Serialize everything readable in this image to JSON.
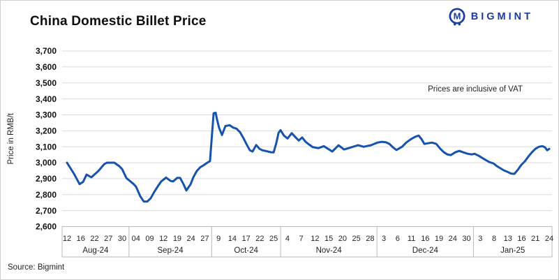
{
  "header": {
    "title": "China Domestic Billet Price",
    "brand": "BIGMINT"
  },
  "footer": {
    "source": "Source: Bigmint"
  },
  "colors": {
    "line": "#1553AD",
    "brand": "#1A3C9C",
    "grid": "#DBDBDB",
    "axis": "#B9B9B9",
    "text": "#1A1A1A"
  },
  "chart_data": {
    "type": "line",
    "title": "China Domestic Billet Price",
    "ylabel": "Price in RMB/t",
    "annotation": "Prices are inclusive of VAT",
    "ylim": [
      2600,
      3700
    ],
    "y_tick_step": 100,
    "grid": "horizontal",
    "legend_position": "none",
    "x_groups": [
      {
        "label": "Aug-24",
        "ticks": [
          "12",
          "16",
          "22",
          "27",
          "30"
        ]
      },
      {
        "label": "Sep-24",
        "ticks": [
          "04",
          "09",
          "12",
          "19",
          "24",
          "27"
        ]
      },
      {
        "label": "Oct-24",
        "ticks": [
          "9",
          "14",
          "17",
          "22",
          "25"
        ]
      },
      {
        "label": "Nov-24",
        "ticks": [
          "4",
          "7",
          "12",
          "15",
          "20",
          "25",
          "28"
        ]
      },
      {
        "label": "Dec-24",
        "ticks": [
          "3",
          "6",
          "11",
          "16",
          "19",
          "24",
          "30"
        ]
      },
      {
        "label": "Jan-25",
        "ticks": [
          "3",
          "8",
          "13",
          "16",
          "21",
          "24"
        ]
      }
    ],
    "points": [
      [
        0,
        3000
      ],
      [
        0.51,
        2930
      ],
      [
        0.91,
        2866
      ],
      [
        1.17,
        2880
      ],
      [
        1.42,
        2926
      ],
      [
        1.77,
        2909
      ],
      [
        2.28,
        2948
      ],
      [
        2.69,
        2990
      ],
      [
        2.89,
        3000
      ],
      [
        3.44,
        3000
      ],
      [
        3.8,
        2978
      ],
      [
        4,
        2960
      ],
      [
        4.31,
        2904
      ],
      [
        4.81,
        2868
      ],
      [
        5.01,
        2850
      ],
      [
        5.32,
        2790
      ],
      [
        5.57,
        2757
      ],
      [
        5.83,
        2757
      ],
      [
        6.08,
        2778
      ],
      [
        6.33,
        2817
      ],
      [
        6.59,
        2852
      ],
      [
        6.84,
        2883
      ],
      [
        7.19,
        2907
      ],
      [
        7.5,
        2887
      ],
      [
        7.7,
        2883
      ],
      [
        8,
        2905
      ],
      [
        8.21,
        2905
      ],
      [
        8.46,
        2865
      ],
      [
        8.66,
        2826
      ],
      [
        8.97,
        2865
      ],
      [
        9.17,
        2909
      ],
      [
        9.42,
        2948
      ],
      [
        9.68,
        2972
      ],
      [
        9.93,
        2985
      ],
      [
        10.18,
        3000
      ],
      [
        10.38,
        3010
      ],
      [
        10.64,
        3310
      ],
      [
        10.79,
        3313
      ],
      [
        10.89,
        3270
      ],
      [
        11.04,
        3218
      ],
      [
        11.25,
        3174
      ],
      [
        11.5,
        3230
      ],
      [
        11.8,
        3235
      ],
      [
        12.06,
        3220
      ],
      [
        12.31,
        3213
      ],
      [
        12.56,
        3191
      ],
      [
        12.82,
        3152
      ],
      [
        13.02,
        3117
      ],
      [
        13.27,
        3078
      ],
      [
        13.47,
        3070
      ],
      [
        13.73,
        3111
      ],
      [
        13.98,
        3087
      ],
      [
        14.18,
        3078
      ],
      [
        14.49,
        3072
      ],
      [
        14.79,
        3066
      ],
      [
        15,
        3065
      ],
      [
        15.2,
        3126
      ],
      [
        15.35,
        3187
      ],
      [
        15.5,
        3204
      ],
      [
        15.75,
        3170
      ],
      [
        16.01,
        3152
      ],
      [
        16.31,
        3185
      ],
      [
        16.57,
        3161
      ],
      [
        16.82,
        3139
      ],
      [
        17.07,
        3158
      ],
      [
        17.33,
        3130
      ],
      [
        17.48,
        3120
      ],
      [
        17.83,
        3098
      ],
      [
        18.24,
        3091
      ],
      [
        18.64,
        3104
      ],
      [
        19.25,
        3070
      ],
      [
        19.71,
        3109
      ],
      [
        20.11,
        3083
      ],
      [
        20.62,
        3096
      ],
      [
        21.12,
        3110
      ],
      [
        21.53,
        3100
      ],
      [
        22.04,
        3109
      ],
      [
        22.54,
        3126
      ],
      [
        22.85,
        3131
      ],
      [
        23.15,
        3128
      ],
      [
        23.4,
        3118
      ],
      [
        23.66,
        3096
      ],
      [
        23.91,
        3080
      ],
      [
        24.32,
        3100
      ],
      [
        24.62,
        3126
      ],
      [
        24.97,
        3148
      ],
      [
        25.28,
        3163
      ],
      [
        25.53,
        3170
      ],
      [
        25.73,
        3148
      ],
      [
        25.94,
        3118
      ],
      [
        26.19,
        3122
      ],
      [
        26.49,
        3126
      ],
      [
        26.8,
        3118
      ],
      [
        27.1,
        3087
      ],
      [
        27.36,
        3065
      ],
      [
        27.61,
        3052
      ],
      [
        27.86,
        3048
      ],
      [
        28.17,
        3065
      ],
      [
        28.47,
        3074
      ],
      [
        28.77,
        3065
      ],
      [
        29.08,
        3056
      ],
      [
        29.38,
        3052
      ],
      [
        29.58,
        3056
      ],
      [
        29.89,
        3043
      ],
      [
        30.14,
        3030
      ],
      [
        30.39,
        3017
      ],
      [
        30.65,
        3004
      ],
      [
        30.95,
        2996
      ],
      [
        31.21,
        2978
      ],
      [
        31.46,
        2965
      ],
      [
        31.71,
        2952
      ],
      [
        31.97,
        2943
      ],
      [
        32.22,
        2932
      ],
      [
        32.47,
        2930
      ],
      [
        32.73,
        2957
      ],
      [
        32.98,
        2987
      ],
      [
        33.23,
        3009
      ],
      [
        33.49,
        3039
      ],
      [
        33.74,
        3065
      ],
      [
        33.99,
        3087
      ],
      [
        34.25,
        3100
      ],
      [
        34.5,
        3104
      ],
      [
        34.7,
        3096
      ],
      [
        34.85,
        3078
      ],
      [
        35,
        3087
      ]
    ]
  }
}
